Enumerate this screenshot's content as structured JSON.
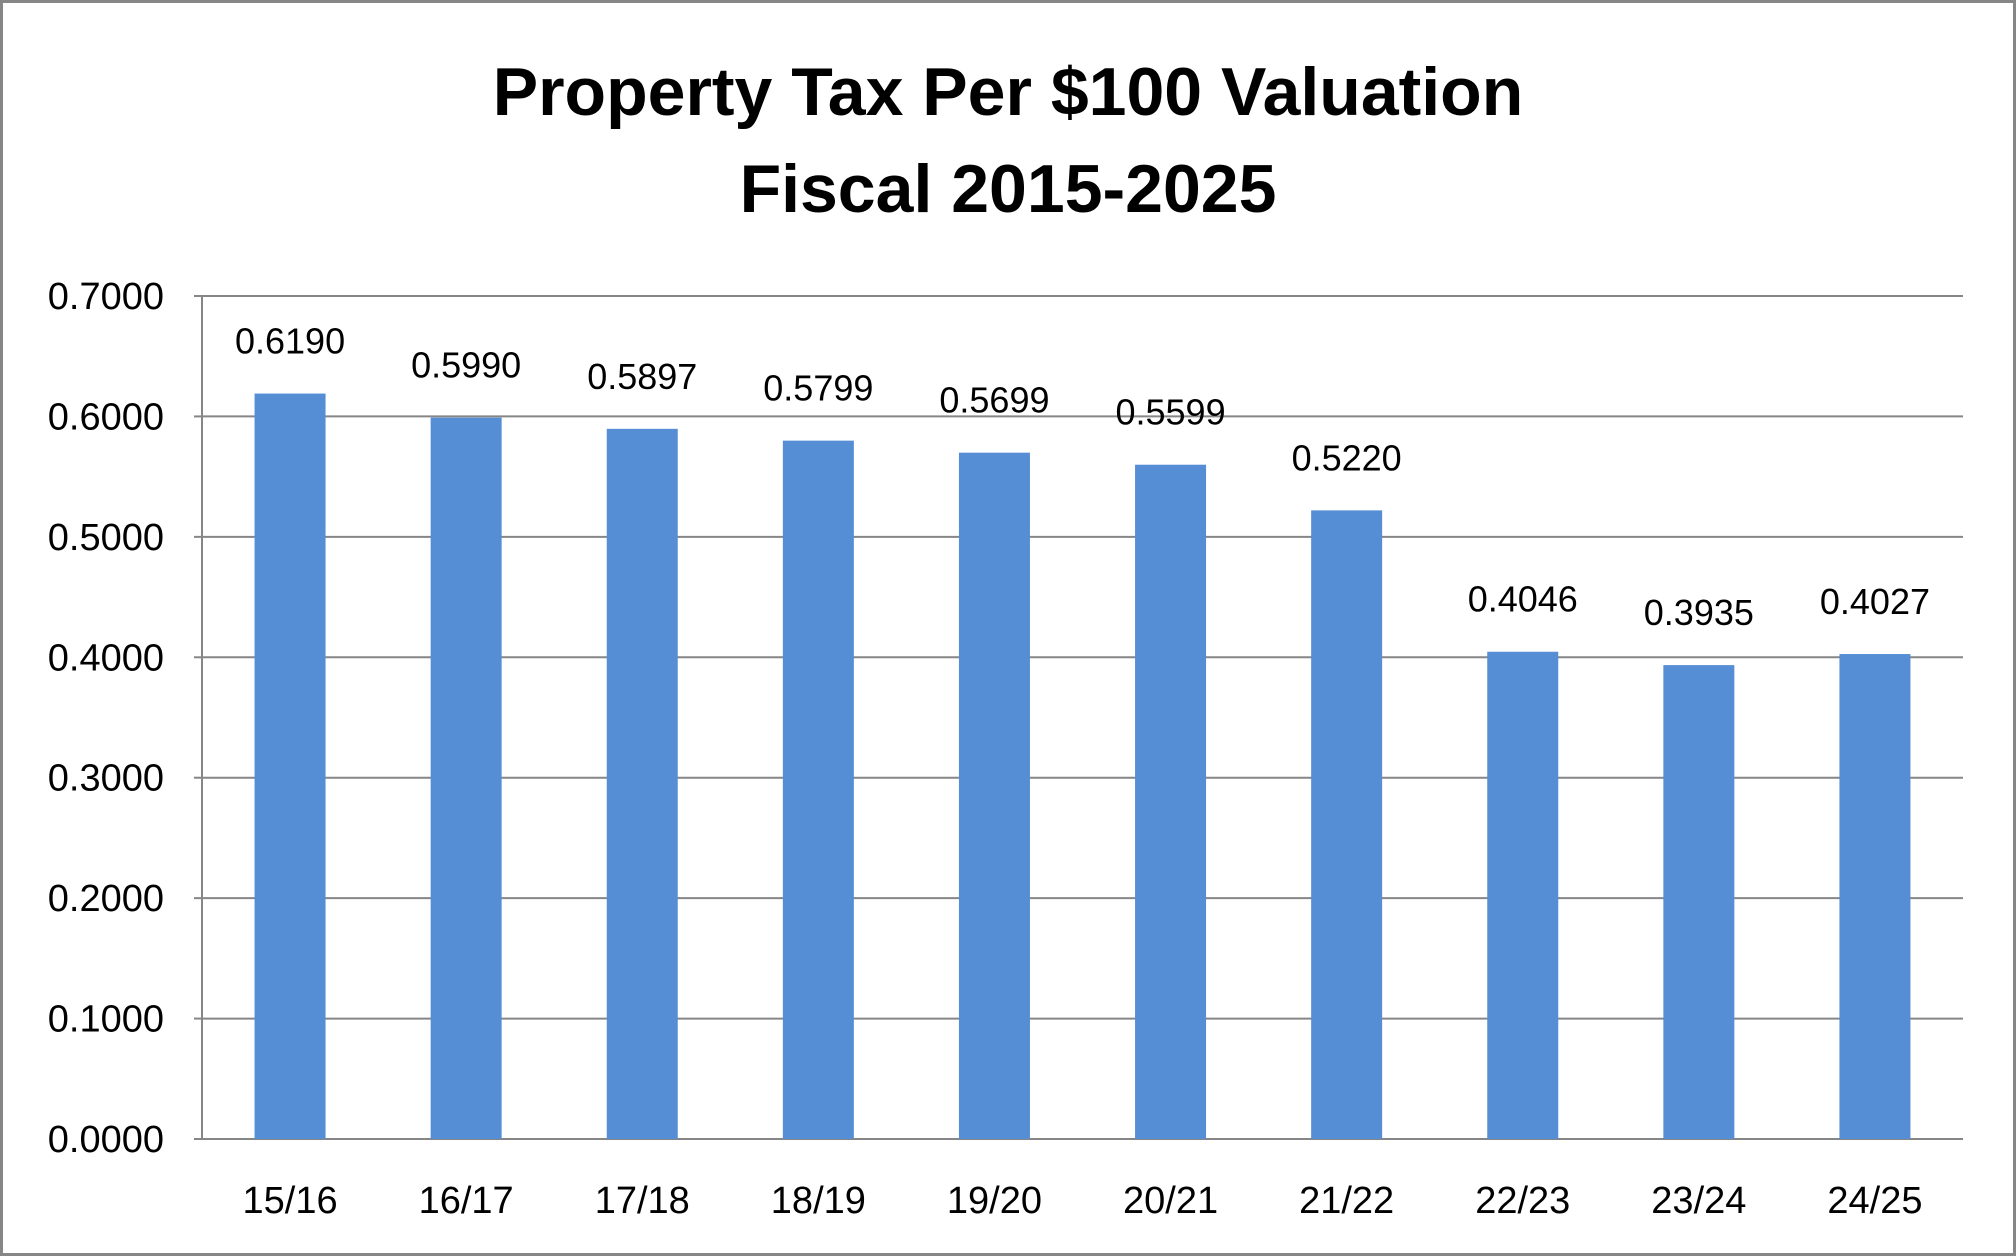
{
  "chart_data": {
    "type": "bar",
    "title": "Property Tax Per $100 Valuation",
    "subtitle": "Fiscal 2015-2025",
    "xlabel": "",
    "ylabel": "",
    "categories": [
      "15/16",
      "16/17",
      "17/18",
      "18/19",
      "19/20",
      "20/21",
      "21/22",
      "22/23",
      "23/24",
      "24/25"
    ],
    "values": [
      0.619,
      0.599,
      0.5897,
      0.5799,
      0.5699,
      0.5599,
      0.522,
      0.4046,
      0.3935,
      0.4027
    ],
    "data_labels": [
      "0.6190",
      "0.5990",
      "0.5897",
      "0.5799",
      "0.5699",
      "0.5599",
      "0.5220",
      "0.4046",
      "0.3935",
      "0.4027"
    ],
    "ylim": [
      0,
      0.7
    ],
    "yticks": [
      "0.0000",
      "0.1000",
      "0.2000",
      "0.3000",
      "0.4000",
      "0.5000",
      "0.6000",
      "0.7000"
    ],
    "grid": true,
    "legend": "none",
    "colors": {
      "bar": "#558ed5",
      "grid": "#868686",
      "border": "#868686"
    }
  }
}
